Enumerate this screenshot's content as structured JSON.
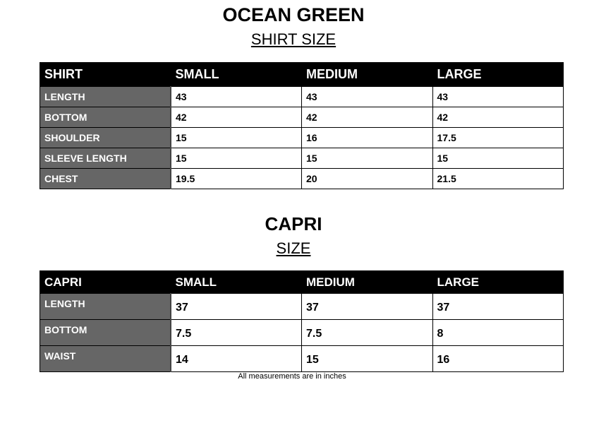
{
  "shirt_section": {
    "title": "OCEAN GREEN",
    "subtitle": "SHIRT SIZE",
    "headers": [
      "SHIRT",
      "SMALL",
      "MEDIUM",
      "LARGE"
    ],
    "rows": [
      {
        "label": "LENGTH",
        "values": [
          "43",
          "43",
          "43"
        ]
      },
      {
        "label": "BOTTOM",
        "values": [
          "42",
          "42",
          "42"
        ]
      },
      {
        "label": "SHOULDER",
        "values": [
          "15",
          "16",
          "17.5"
        ]
      },
      {
        "label": "SLEEVE LENGTH",
        "values": [
          "15",
          "15",
          "15"
        ]
      },
      {
        "label": "CHEST",
        "values": [
          "19.5",
          "20",
          "21.5"
        ]
      }
    ]
  },
  "capri_section": {
    "title": "CAPRI",
    "subtitle": "SIZE",
    "headers": [
      "CAPRI",
      "SMALL",
      "MEDIUM",
      "LARGE"
    ],
    "rows": [
      {
        "label": "LENGTH",
        "values": [
          "37",
          "37",
          "37"
        ]
      },
      {
        "label": "BOTTOM",
        "values": [
          "7.5",
          "7.5",
          "8"
        ]
      },
      {
        "label": "WAIST",
        "values": [
          "14",
          "15",
          "16"
        ]
      }
    ]
  },
  "footnote": "All measurements are in inches",
  "colors": {
    "header_bg": "#000000",
    "label_bg": "#666666"
  }
}
